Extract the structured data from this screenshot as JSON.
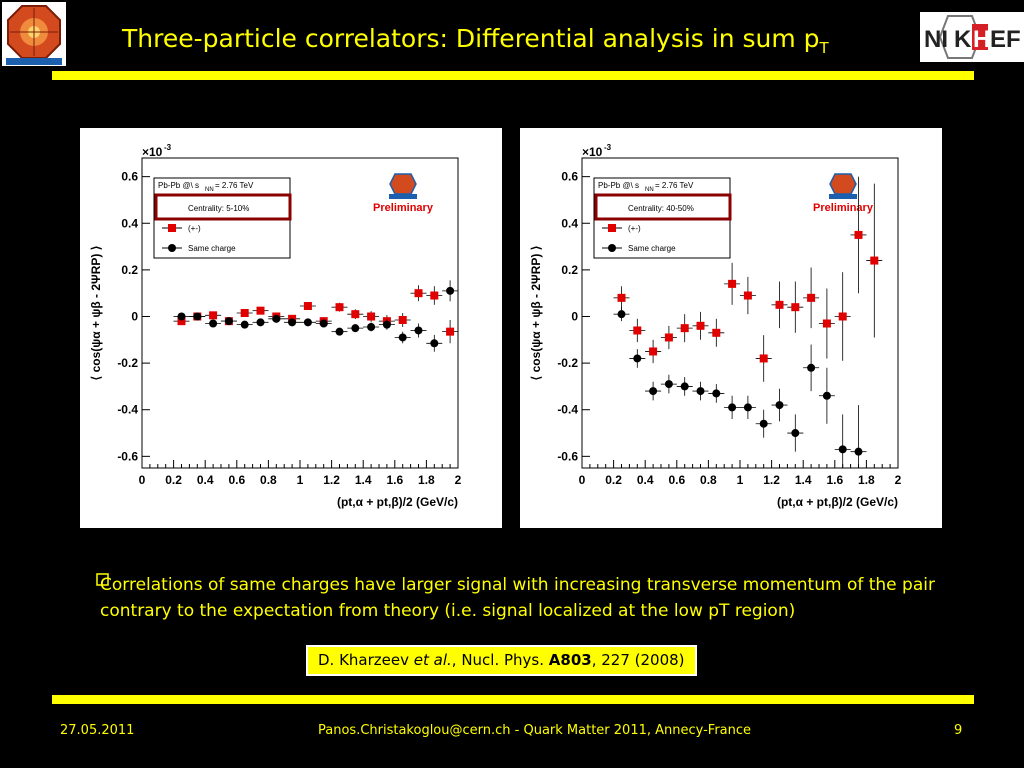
{
  "slide": {
    "title_main": "Three-particle correlators: Differential analysis in sum p",
    "title_sub": "T",
    "bullet_text": "Correlations of same charges have larger signal with increasing transverse momentum of the pair contrary to the expectation from theory (i.e. signal localized at the low pT region)",
    "reference": {
      "authors": "D. Kharzeev ",
      "etal": "et al.",
      "journal": ", Nucl. Phys. ",
      "volume": "A803",
      "rest": ", 227 (2008)"
    },
    "footer": {
      "date": "27.05.2011",
      "center": "Panos.Christakoglou@cern.ch - Quark Matter 2011, Annecy-France",
      "page": "9"
    },
    "logos": {
      "left": "ALICE",
      "right": "NIKHEF"
    },
    "colors": {
      "accent": "#ffff00",
      "background": "#000000",
      "opposite": "#e00000",
      "same": "#000000",
      "highlight": "#8b0000"
    }
  },
  "chart_data": [
    {
      "type": "scatter",
      "multiplier": "×10",
      "multiplier_exp": "-3",
      "ylabel": "⟨ cos(ψα + ψβ - 2ΨRP) ⟩",
      "xlabel": "(pt,α + pt,β)/2 (GeV/c)",
      "xlim": [
        0,
        2
      ],
      "ylim": [
        -0.65,
        0.68
      ],
      "xticks": [
        0,
        0.2,
        0.4,
        0.6,
        0.8,
        1,
        1.2,
        1.4,
        1.6,
        1.8,
        2
      ],
      "yticks": [
        -0.6,
        -0.4,
        -0.2,
        0,
        0.2,
        0.4,
        0.6
      ],
      "legend_header": "Pb-Pb @\\ s",
      "legend_header_sub": "NN",
      "legend_header_rest": " = 2.76 TeV",
      "centrality": "Centrality: 5-10%",
      "preliminary": "Preliminary",
      "series": [
        {
          "name": "(+-)",
          "color": "#e00000",
          "marker": "square",
          "x": [
            0.25,
            0.35,
            0.45,
            0.55,
            0.65,
            0.75,
            0.85,
            0.95,
            1.05,
            1.15,
            1.25,
            1.35,
            1.45,
            1.55,
            1.65,
            1.75,
            1.85,
            1.95
          ],
          "y": [
            -0.02,
            0.0,
            0.005,
            -0.02,
            0.015,
            0.025,
            0.0,
            -0.01,
            0.045,
            -0.02,
            0.04,
            0.01,
            0.0,
            -0.02,
            -0.015,
            0.1,
            0.09,
            -0.065
          ],
          "err": [
            0.012,
            0.012,
            0.012,
            0.012,
            0.013,
            0.013,
            0.014,
            0.015,
            0.016,
            0.017,
            0.019,
            0.021,
            0.023,
            0.026,
            0.03,
            0.034,
            0.04,
            0.05
          ]
        },
        {
          "name": "Same charge",
          "color": "#000000",
          "marker": "circle",
          "x": [
            0.25,
            0.35,
            0.45,
            0.55,
            0.65,
            0.75,
            0.85,
            0.95,
            1.05,
            1.15,
            1.25,
            1.35,
            1.45,
            1.55,
            1.65,
            1.75,
            1.85,
            1.95
          ],
          "y": [
            0.0,
            0.0,
            -0.03,
            -0.02,
            -0.035,
            -0.025,
            -0.01,
            -0.025,
            -0.025,
            -0.03,
            -0.065,
            -0.05,
            -0.045,
            -0.035,
            -0.09,
            -0.06,
            -0.115,
            0.11
          ],
          "err": [
            0.008,
            0.008,
            0.009,
            0.009,
            0.01,
            0.01,
            0.011,
            0.012,
            0.013,
            0.014,
            0.015,
            0.017,
            0.019,
            0.022,
            0.025,
            0.03,
            0.036,
            0.045
          ]
        }
      ]
    },
    {
      "type": "scatter",
      "multiplier": "×10",
      "multiplier_exp": "-3",
      "ylabel": "⟨ cos(ψα + ψβ - 2ΨRP) ⟩",
      "xlabel": "(pt,α + pt,β)/2 (GeV/c)",
      "xlim": [
        0,
        2
      ],
      "ylim": [
        -0.65,
        0.68
      ],
      "xticks": [
        0,
        0.2,
        0.4,
        0.6,
        0.8,
        1,
        1.2,
        1.4,
        1.6,
        1.8,
        2
      ],
      "yticks": [
        -0.6,
        -0.4,
        -0.2,
        0,
        0.2,
        0.4,
        0.6
      ],
      "legend_header": "Pb-Pb @\\ s",
      "legend_header_sub": "NN",
      "legend_header_rest": " = 2.76 TeV",
      "centrality": "Centrality: 40-50%",
      "preliminary": "Preliminary",
      "series": [
        {
          "name": "(+-)",
          "color": "#e00000",
          "marker": "square",
          "x": [
            0.25,
            0.35,
            0.45,
            0.55,
            0.65,
            0.75,
            0.85,
            0.95,
            1.05,
            1.15,
            1.25,
            1.35,
            1.45,
            1.55,
            1.65,
            1.75,
            1.85
          ],
          "y": [
            0.08,
            -0.06,
            -0.15,
            -0.09,
            -0.05,
            -0.04,
            -0.07,
            0.14,
            0.09,
            -0.18,
            0.05,
            0.04,
            0.08,
            -0.03,
            0.0,
            0.35,
            0.24
          ],
          "err": [
            0.05,
            0.05,
            0.05,
            0.05,
            0.06,
            0.06,
            0.06,
            0.09,
            0.08,
            0.1,
            0.1,
            0.11,
            0.13,
            0.15,
            0.19,
            0.25,
            0.33
          ]
        },
        {
          "name": "Same charge",
          "color": "#000000",
          "marker": "circle",
          "x": [
            0.25,
            0.35,
            0.45,
            0.55,
            0.65,
            0.75,
            0.85,
            0.95,
            1.05,
            1.15,
            1.25,
            1.35,
            1.45,
            1.55,
            1.65,
            1.75
          ],
          "y": [
            0.01,
            -0.18,
            -0.32,
            -0.29,
            -0.3,
            -0.32,
            -0.33,
            -0.39,
            -0.39,
            -0.46,
            -0.38,
            -0.5,
            -0.22,
            -0.34,
            -0.57,
            -0.58
          ],
          "err": [
            0.03,
            0.04,
            0.04,
            0.04,
            0.04,
            0.04,
            0.04,
            0.05,
            0.05,
            0.06,
            0.07,
            0.08,
            0.1,
            0.12,
            0.15,
            0.2
          ]
        }
      ]
    }
  ]
}
